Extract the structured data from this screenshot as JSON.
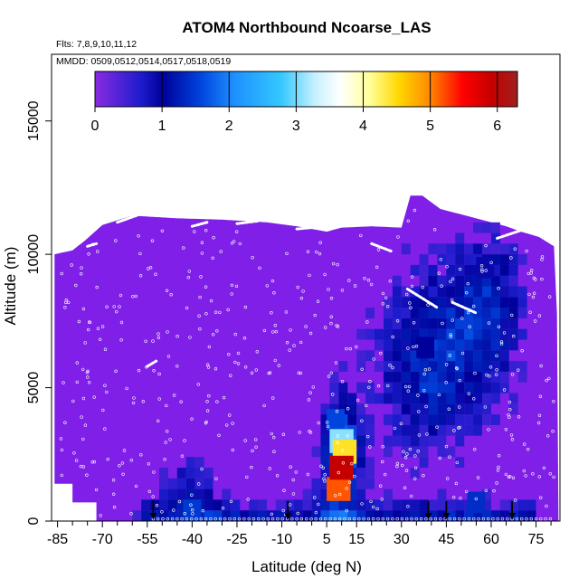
{
  "chart_data": {
    "type": "heatmap",
    "title": "ATOM4 Northbound Ncoarse_LAS",
    "subtitle_flights": "Flts: 7,8,9,10,11,12",
    "subtitle_dates": "MMDD: 0509,0512,0514,0517,0518,0519",
    "xlabel": "Latitude (deg N)",
    "ylabel": "Altitude (m)",
    "xlim": [
      -87,
      83
    ],
    "ylim": [
      0,
      17500
    ],
    "x_ticks": [
      -85,
      -70,
      -55,
      -40,
      -25,
      -10,
      5,
      15,
      30,
      45,
      60,
      75
    ],
    "y_ticks": [
      0,
      5000,
      10000,
      15000
    ],
    "colorbar": {
      "range": [
        0,
        6.3
      ],
      "ticks": [
        0,
        1,
        2,
        3,
        4,
        5,
        6
      ],
      "placement": "top-inside"
    },
    "arrow_latitudes": [
      -53,
      -8,
      39,
      45,
      67
    ],
    "hotspots": [
      {
        "lat": 10,
        "alt": 2000,
        "value": 5.9
      },
      {
        "lat": 9,
        "alt": 1200,
        "value": 5.2
      },
      {
        "lat": 11,
        "alt": 2600,
        "value": 4.4
      },
      {
        "lat": 10,
        "alt": 3000,
        "value": 3.1
      },
      {
        "lat": 8,
        "alt": 3800,
        "value": 1.6
      },
      {
        "lat": 55,
        "alt": 700,
        "value": 1.4
      },
      {
        "lat": -40,
        "alt": 400,
        "value": 1.5
      },
      {
        "lat": 38,
        "alt": 6500,
        "value": 1.0
      },
      {
        "lat": 58,
        "alt": 9500,
        "value": 0.9
      }
    ]
  },
  "colors": {
    "background_field": "#7f1fe8",
    "points": "#ffffff",
    "arrows": "#000000"
  }
}
